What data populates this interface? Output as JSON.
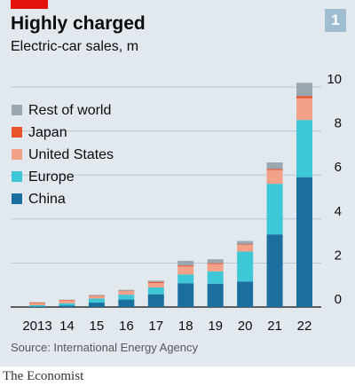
{
  "header": {
    "title": "Highly charged",
    "subtitle": "Electric-car sales, m",
    "chart_number": "1"
  },
  "source": "Source: International Energy Agency",
  "publisher": "The Economist",
  "colors": {
    "China": "#1a6f9f",
    "Europe": "#3ec7d6",
    "United States": "#f4a18a",
    "Japan": "#e8532a",
    "Rest of world": "#9aa6b0"
  },
  "chart_data": {
    "type": "bar",
    "stacked": true,
    "title": "Highly charged",
    "subtitle": "Electric-car sales, m",
    "categories": [
      "2013",
      "14",
      "15",
      "16",
      "17",
      "18",
      "19",
      "20",
      "21",
      "22"
    ],
    "series": [
      {
        "name": "China",
        "values": [
          0.02,
          0.07,
          0.2,
          0.34,
          0.58,
          1.08,
          1.06,
          1.16,
          3.3,
          5.9
        ]
      },
      {
        "name": "Europe",
        "values": [
          0.06,
          0.1,
          0.19,
          0.22,
          0.31,
          0.4,
          0.56,
          1.36,
          2.3,
          2.6
        ]
      },
      {
        "name": "United States",
        "values": [
          0.1,
          0.12,
          0.11,
          0.16,
          0.2,
          0.36,
          0.33,
          0.3,
          0.63,
          0.99
        ]
      },
      {
        "name": "Japan",
        "values": [
          0.03,
          0.03,
          0.02,
          0.02,
          0.05,
          0.05,
          0.04,
          0.03,
          0.04,
          0.1
        ]
      },
      {
        "name": "Rest of world",
        "values": [
          0.01,
          0.01,
          0.03,
          0.04,
          0.06,
          0.21,
          0.18,
          0.15,
          0.3,
          0.6
        ]
      }
    ],
    "legend": [
      "Rest of world",
      "Japan",
      "United States",
      "Europe",
      "China"
    ],
    "legend_position": "top-left",
    "y_ticks": [
      0,
      2,
      4,
      6,
      8,
      10
    ],
    "ylim": [
      0,
      10
    ],
    "y_axis_position": "right",
    "grid": true
  }
}
